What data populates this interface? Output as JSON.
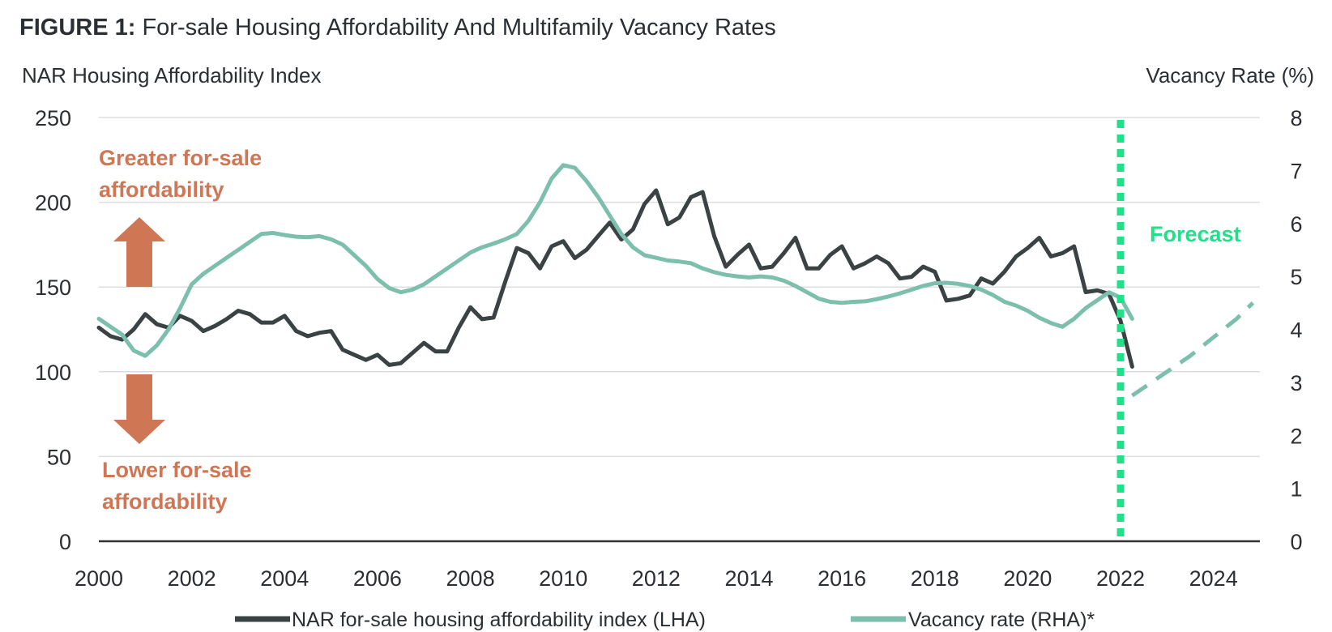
{
  "figure": {
    "label": "FIGURE 1:",
    "title": "For-sale Housing Affordability And Multifamily Vacancy Rates"
  },
  "colors": {
    "nar_line": "#3a4244",
    "vacancy_line": "#7cbfac",
    "forecast_marker": "#22e08a",
    "annotation": "#cf7655",
    "grid": "#dddddd",
    "axis": "#333333"
  },
  "chart_data": {
    "type": "line",
    "title": "For-sale Housing Affordability And Multifamily Vacancy Rates",
    "left_axis": {
      "label": "NAR Housing Affordability Index",
      "range": [
        0,
        250
      ],
      "ticks": [
        "0",
        "50",
        "100",
        "150",
        "200",
        "250"
      ]
    },
    "right_axis": {
      "label": "Vacancy Rate (%)",
      "range": [
        0,
        8
      ],
      "ticks": [
        "0",
        "1",
        "2",
        "3",
        "4",
        "5",
        "6",
        "7",
        "8"
      ]
    },
    "x_axis": {
      "range": [
        2000,
        2025
      ],
      "ticks": [
        "2000",
        "2002",
        "2004",
        "2006",
        "2008",
        "2010",
        "2012",
        "2014",
        "2016",
        "2018",
        "2020",
        "2022",
        "2024"
      ]
    },
    "grid": true,
    "legend_position": "bottom",
    "forecast_start": 2022.0,
    "annotations": {
      "greater": [
        "Greater for-sale",
        "affordability"
      ],
      "lower": [
        "Lower for-sale",
        "affordability"
      ],
      "forecast": "Forecast"
    },
    "series": [
      {
        "name": "NAR for-sale housing affordability index (LHA)",
        "axis": "left",
        "x": [
          2000.0,
          2000.25,
          2000.5,
          2000.75,
          2001.0,
          2001.25,
          2001.5,
          2001.75,
          2002.0,
          2002.25,
          2002.5,
          2002.75,
          2003.0,
          2003.25,
          2003.5,
          2003.75,
          2004.0,
          2004.25,
          2004.5,
          2004.75,
          2005.0,
          2005.25,
          2005.5,
          2005.75,
          2006.0,
          2006.25,
          2006.5,
          2006.75,
          2007.0,
          2007.25,
          2007.5,
          2007.75,
          2008.0,
          2008.25,
          2008.5,
          2008.75,
          2009.0,
          2009.25,
          2009.5,
          2009.75,
          2010.0,
          2010.25,
          2010.5,
          2010.75,
          2011.0,
          2011.25,
          2011.5,
          2011.75,
          2012.0,
          2012.25,
          2012.5,
          2012.75,
          2013.0,
          2013.25,
          2013.5,
          2013.75,
          2014.0,
          2014.25,
          2014.5,
          2014.75,
          2015.0,
          2015.25,
          2015.5,
          2015.75,
          2016.0,
          2016.25,
          2016.5,
          2016.75,
          2017.0,
          2017.25,
          2017.5,
          2017.75,
          2018.0,
          2018.25,
          2018.5,
          2018.75,
          2019.0,
          2019.25,
          2019.5,
          2019.75,
          2020.0,
          2020.25,
          2020.5,
          2020.75,
          2021.0,
          2021.25,
          2021.5,
          2021.75,
          2022.0,
          2022.25
        ],
        "values": [
          126,
          121,
          119,
          125,
          134,
          128,
          126,
          133,
          130,
          124,
          127,
          131,
          136,
          134,
          129,
          129,
          133,
          124,
          121,
          123,
          124,
          113,
          110,
          107,
          110,
          104,
          105,
          111,
          117,
          112,
          112,
          126,
          138,
          131,
          132,
          153,
          173,
          170,
          161,
          174,
          177,
          167,
          172,
          180,
          188,
          178,
          184,
          199,
          207,
          187,
          191,
          203,
          206,
          180,
          162,
          169,
          175,
          161,
          162,
          170,
          179,
          161,
          161,
          169,
          174,
          161,
          164,
          168,
          164,
          155,
          156,
          162,
          159,
          142,
          143,
          145,
          155,
          152,
          159,
          168,
          173,
          179,
          168,
          170,
          174,
          147,
          148,
          146,
          130,
          103
        ]
      },
      {
        "name": "Vacancy rate (RHA)*",
        "axis": "right",
        "x": [
          2000.0,
          2000.25,
          2000.5,
          2000.75,
          2001.0,
          2001.25,
          2001.5,
          2001.75,
          2002.0,
          2002.25,
          2002.5,
          2002.75,
          2003.0,
          2003.25,
          2003.5,
          2003.75,
          2004.0,
          2004.25,
          2004.5,
          2004.75,
          2005.0,
          2005.25,
          2005.5,
          2005.75,
          2006.0,
          2006.25,
          2006.5,
          2006.75,
          2007.0,
          2007.25,
          2007.5,
          2007.75,
          2008.0,
          2008.25,
          2008.5,
          2008.75,
          2009.0,
          2009.25,
          2009.5,
          2009.75,
          2010.0,
          2010.25,
          2010.5,
          2010.75,
          2011.0,
          2011.25,
          2011.5,
          2011.75,
          2012.0,
          2012.25,
          2012.5,
          2012.75,
          2013.0,
          2013.25,
          2013.5,
          2013.75,
          2014.0,
          2014.25,
          2014.5,
          2014.75,
          2015.0,
          2015.25,
          2015.5,
          2015.75,
          2016.0,
          2016.25,
          2016.5,
          2016.75,
          2017.0,
          2017.25,
          2017.5,
          2017.75,
          2018.0,
          2018.25,
          2018.5,
          2018.75,
          2019.0,
          2019.25,
          2019.5,
          2019.75,
          2020.0,
          2020.25,
          2020.5,
          2020.75,
          2021.0,
          2021.25,
          2021.5,
          2021.75,
          2022.0,
          2022.25
        ],
        "values": [
          4.2,
          4.05,
          3.9,
          3.6,
          3.5,
          3.7,
          4.0,
          4.4,
          4.85,
          5.05,
          5.2,
          5.35,
          5.5,
          5.65,
          5.8,
          5.82,
          5.78,
          5.75,
          5.74,
          5.76,
          5.7,
          5.6,
          5.4,
          5.2,
          4.95,
          4.78,
          4.7,
          4.75,
          4.85,
          5.0,
          5.15,
          5.3,
          5.45,
          5.55,
          5.62,
          5.7,
          5.8,
          6.05,
          6.4,
          6.85,
          7.1,
          7.05,
          6.8,
          6.5,
          6.15,
          5.8,
          5.55,
          5.4,
          5.35,
          5.3,
          5.28,
          5.25,
          5.15,
          5.08,
          5.03,
          5.0,
          4.98,
          5.0,
          4.98,
          4.92,
          4.82,
          4.7,
          4.58,
          4.52,
          4.5,
          4.52,
          4.53,
          4.57,
          4.62,
          4.68,
          4.75,
          4.82,
          4.87,
          4.88,
          4.86,
          4.82,
          4.75,
          4.65,
          4.52,
          4.45,
          4.35,
          4.22,
          4.12,
          4.05,
          4.2,
          4.4,
          4.55,
          4.7,
          4.6,
          4.2
        ]
      },
      {
        "name": "Vacancy rate forecast",
        "axis": "right",
        "style": "dashed",
        "x": [
          2022.25,
          2022.75,
          2023.5,
          2024.0,
          2024.5,
          2024.85
        ],
        "values": [
          2.75,
          3.05,
          3.5,
          3.85,
          4.2,
          4.5
        ]
      }
    ]
  },
  "legend": {
    "nar_label": "NAR for-sale housing affordability index (LHA)",
    "vacancy_label": "Vacancy rate (RHA)*"
  }
}
